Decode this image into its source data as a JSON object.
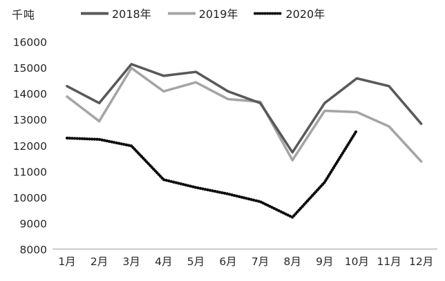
{
  "chart": {
    "background": "#ffffff",
    "axis_color": "#c6c6c6",
    "text_color": "#262626"
  },
  "chart_data": {
    "type": "line",
    "title": "",
    "xlabel": "",
    "ylabel": "千吨",
    "categories": [
      "1月",
      "2月",
      "3月",
      "4月",
      "5月",
      "6月",
      "7月",
      "8月",
      "9月",
      "10月",
      "11月",
      "12月"
    ],
    "series": [
      {
        "name": "2018年",
        "color": "#595959",
        "style": "solid",
        "values": [
          14300,
          13650,
          15150,
          14700,
          14850,
          14100,
          13650,
          11750,
          13650,
          14600,
          14300,
          12850
        ]
      },
      {
        "name": "2019年",
        "color": "#a5a5a5",
        "style": "solid",
        "values": [
          13900,
          12950,
          15000,
          14100,
          14450,
          13800,
          13700,
          11450,
          13350,
          13300,
          12750,
          11400
        ]
      },
      {
        "name": "2020年",
        "color": "#0d0d0d",
        "style": "dotted",
        "values": [
          12300,
          12250,
          12000,
          10700,
          10400,
          10150,
          9850,
          9250,
          10600,
          12600,
          null,
          null
        ]
      }
    ],
    "ylim": [
      8000,
      16000
    ],
    "y_ticks": [
      16000,
      15000,
      14000,
      13000,
      12000,
      11000,
      10000,
      9000,
      8000
    ],
    "grid": false,
    "legend_position": "top"
  }
}
